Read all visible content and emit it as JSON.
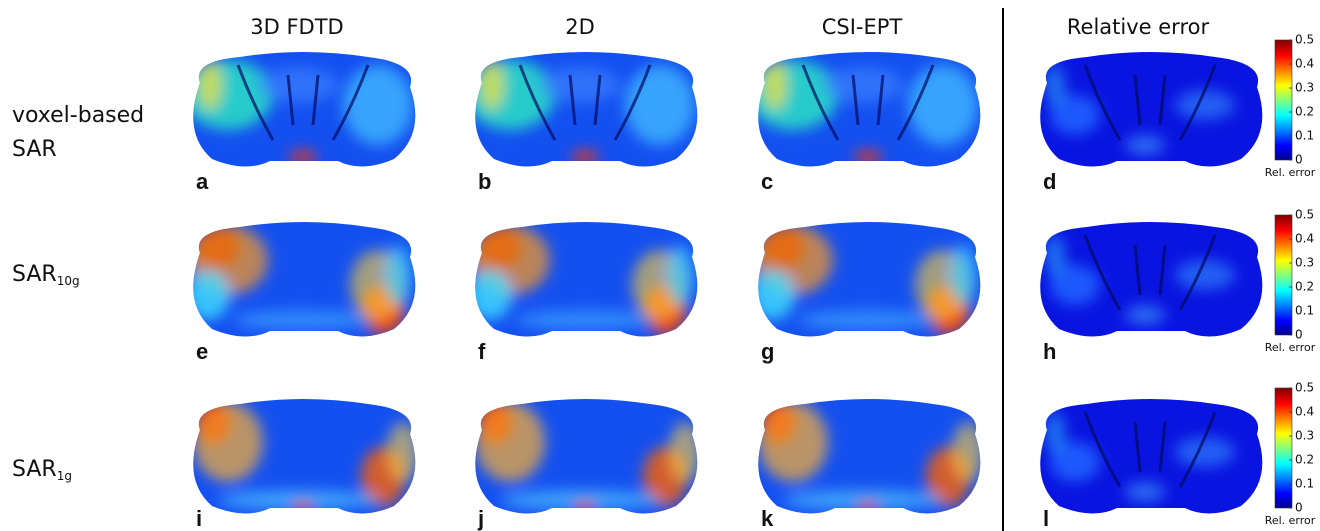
{
  "columns": [
    "3D FDTD",
    "2D",
    "CSI-EPT",
    "Relative error"
  ],
  "rows": [
    {
      "label": [
        "voxel-based",
        "SAR"
      ]
    },
    {
      "label": "SAR",
      "subscript": "10g"
    },
    {
      "label": "SAR",
      "subscript": "1g"
    }
  ],
  "panels": [
    "a",
    "b",
    "c",
    "d",
    "e",
    "f",
    "g",
    "h",
    "i",
    "j",
    "k",
    "l"
  ],
  "colorbar": {
    "ticks": [
      0,
      0.1,
      0.2,
      0.3,
      0.4,
      0.5
    ],
    "label": "Rel. error"
  }
}
